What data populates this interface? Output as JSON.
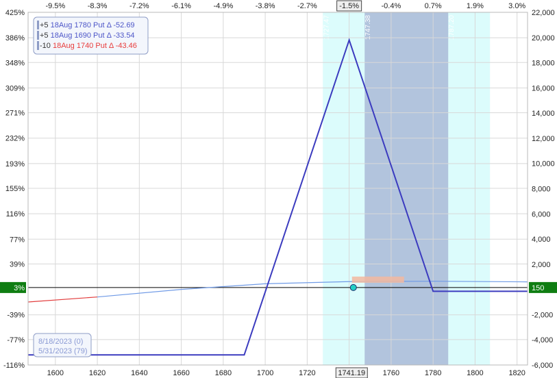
{
  "chart_data": {
    "type": "line",
    "title": "",
    "xlabel": "",
    "ylabel": "",
    "xlim": [
      1587,
      1825
    ],
    "y_left_lim": [
      -116,
      425
    ],
    "y_right_lim": [
      -6000,
      22000
    ],
    "top_axis_ticks": [
      "-9.5%",
      "-8.3%",
      "-7.2%",
      "-6.1%",
      "-4.9%",
      "-3.8%",
      "-2.7%",
      "-1.5%",
      "-0.4%",
      "0.7%",
      "1.9%",
      "3.0%"
    ],
    "top_axis_ticks_x": [
      1600,
      1620,
      1640,
      1660,
      1680,
      1700,
      1720,
      1740,
      1760,
      1780,
      1800,
      1820
    ],
    "top_axis_highlight": "-1.5%",
    "bottom_axis_ticks": [
      "1600",
      "1620",
      "1640",
      "1660",
      "1680",
      "1700",
      "1720",
      "1760",
      "1780",
      "1800",
      "1820"
    ],
    "bottom_axis_ticks_x": [
      1600,
      1620,
      1640,
      1660,
      1680,
      1700,
      1720,
      1760,
      1780,
      1800,
      1820
    ],
    "current_price_label": "1741.19",
    "current_price": 1741.19,
    "left_axis_ticks": [
      "425%",
      "386%",
      "348%",
      "309%",
      "271%",
      "232%",
      "193%",
      "155%",
      "116%",
      "77%",
      "39%",
      "-39%",
      "-77%",
      "-116%"
    ],
    "left_axis_ticks_y": [
      425,
      386,
      348,
      309,
      271,
      232,
      193,
      155,
      116,
      77,
      39,
      -39,
      -77,
      -116
    ],
    "left_axis_highlight": "3%",
    "right_axis_ticks": [
      "22,000",
      "20,000",
      "18,000",
      "16,000",
      "14,000",
      "12,000",
      "10,000",
      "8,000",
      "6,000",
      "4,000",
      "2,000",
      "-2,000",
      "-4,000",
      "-6,000"
    ],
    "right_axis_ticks_y": [
      22000,
      20000,
      18000,
      16000,
      14000,
      12000,
      10000,
      8000,
      6000,
      4000,
      2000,
      -2000,
      -4000,
      -6000
    ],
    "right_axis_highlight": "150",
    "zero_line_value": 150,
    "sd_bands": {
      "outer": [
        1727.47,
        1807.11
      ],
      "inner": [
        1747.38,
        1787.2
      ],
      "labels": [
        "1727.47",
        "1747.38",
        "1787.20",
        "1807.11"
      ],
      "label_x": [
        1727.47,
        1747.38,
        1787.2,
        1807.11
      ]
    },
    "series": [
      {
        "name": "8/18/2023 (0)",
        "x": [
          1587,
          1690,
          1740,
          1780,
          1825
        ],
        "y": [
          -5200,
          -5200,
          19800,
          -150,
          -150
        ]
      },
      {
        "name": "5/31/2023 (79)",
        "x": [
          1587,
          1620,
          1660,
          1700,
          1740,
          1780,
          1825
        ],
        "y": [
          -1000,
          -600,
          0,
          450,
          620,
          650,
          600
        ],
        "negative_segment_end_x": 1620
      }
    ],
    "current_marker": {
      "x": 1742,
      "y": 150
    },
    "legend": {
      "placement": "top-left",
      "entries": [
        {
          "qty": "+5",
          "desc": "18Aug 1780 Put",
          "delta_label": "Δ",
          "delta": "-52.69",
          "color": "#4d56c8"
        },
        {
          "qty": "+5",
          "desc": "18Aug 1690 Put",
          "delta_label": "Δ",
          "delta": "-33.54",
          "color": "#4d56c8"
        },
        {
          "qty": "-10",
          "desc": "18Aug 1740 Put",
          "delta_label": "Δ",
          "delta": "-43.46",
          "color": "#e83b3b"
        }
      ]
    },
    "date_legend": {
      "placement": "bottom-left",
      "entries": [
        "8/18/2023 (0)",
        "5/31/2023 (79)"
      ]
    },
    "grid": true
  },
  "colors": {
    "expiry_line": "#3b3bbf",
    "today_line_pos": "#6f9ae6",
    "today_line_neg": "#e23c3c",
    "outer_band": "#dcfcfc",
    "inner_band": "#b2c4dd",
    "highlight_green": "#0f7d12",
    "marker": "#22cfc4"
  }
}
